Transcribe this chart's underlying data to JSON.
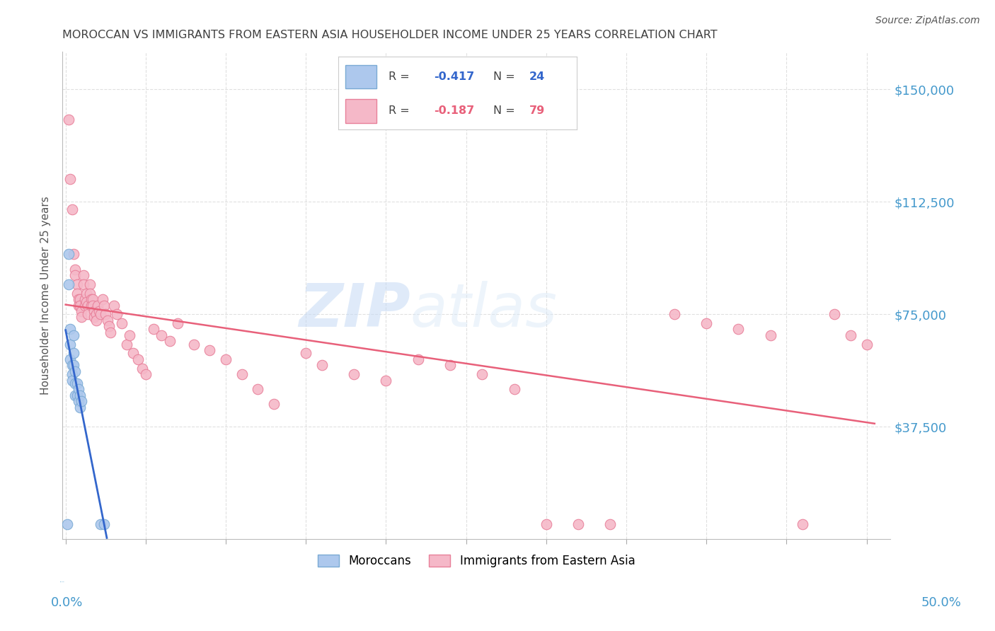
{
  "title": "MOROCCAN VS IMMIGRANTS FROM EASTERN ASIA HOUSEHOLDER INCOME UNDER 25 YEARS CORRELATION CHART",
  "source": "Source: ZipAtlas.com",
  "ylabel": "Householder Income Under 25 years",
  "ytick_labels": [
    "$150,000",
    "$112,500",
    "$75,000",
    "$37,500"
  ],
  "ytick_values": [
    150000,
    112500,
    75000,
    37500
  ],
  "ylim": [
    0,
    162500
  ],
  "xlim": [
    -0.002,
    0.515
  ],
  "watermark_zip": "ZIP",
  "watermark_atlas": "atlas",
  "legend_r1": "R = -0.417",
  "legend_n1": "N = 24",
  "legend_r2": "R = -0.187",
  "legend_n2": "N = 79",
  "moroccan_color": "#adc8ed",
  "moroccan_edge": "#7aaad4",
  "eastern_color": "#f5b8c8",
  "eastern_edge": "#e8809a",
  "moroccan_line_color": "#3366cc",
  "moroccan_line_dash": [
    6,
    4
  ],
  "eastern_line_color": "#e8607a",
  "title_color": "#404040",
  "axis_label_color": "#4499cc",
  "grid_color": "#dddddd",
  "moroccan_x": [
    0.001,
    0.002,
    0.002,
    0.003,
    0.003,
    0.003,
    0.004,
    0.004,
    0.004,
    0.005,
    0.005,
    0.005,
    0.006,
    0.006,
    0.006,
    0.007,
    0.007,
    0.008,
    0.008,
    0.009,
    0.009,
    0.01,
    0.022,
    0.024
  ],
  "moroccan_y": [
    5000,
    95000,
    85000,
    70000,
    65000,
    60000,
    58000,
    55000,
    53000,
    68000,
    62000,
    58000,
    56000,
    52000,
    48000,
    52000,
    48000,
    50000,
    46000,
    48000,
    44000,
    46000,
    5000,
    5000
  ],
  "eastern_x": [
    0.002,
    0.003,
    0.004,
    0.005,
    0.006,
    0.006,
    0.007,
    0.007,
    0.008,
    0.008,
    0.009,
    0.009,
    0.01,
    0.01,
    0.011,
    0.011,
    0.012,
    0.012,
    0.013,
    0.013,
    0.014,
    0.014,
    0.015,
    0.015,
    0.016,
    0.016,
    0.017,
    0.017,
    0.018,
    0.018,
    0.019,
    0.019,
    0.02,
    0.021,
    0.022,
    0.023,
    0.024,
    0.025,
    0.026,
    0.027,
    0.028,
    0.03,
    0.032,
    0.035,
    0.038,
    0.04,
    0.042,
    0.045,
    0.048,
    0.05,
    0.055,
    0.06,
    0.065,
    0.07,
    0.08,
    0.09,
    0.1,
    0.11,
    0.12,
    0.13,
    0.15,
    0.16,
    0.18,
    0.2,
    0.22,
    0.24,
    0.26,
    0.28,
    0.3,
    0.32,
    0.34,
    0.38,
    0.4,
    0.42,
    0.44,
    0.46,
    0.48,
    0.49,
    0.5
  ],
  "eastern_y": [
    140000,
    120000,
    110000,
    95000,
    90000,
    88000,
    85000,
    82000,
    80000,
    78000,
    80000,
    78000,
    76000,
    74000,
    88000,
    85000,
    80000,
    78000,
    82000,
    79000,
    78000,
    75000,
    85000,
    82000,
    80000,
    78000,
    80000,
    78000,
    76000,
    74000,
    75000,
    73000,
    78000,
    76000,
    75000,
    80000,
    78000,
    75000,
    73000,
    71000,
    69000,
    78000,
    75000,
    72000,
    65000,
    68000,
    62000,
    60000,
    57000,
    55000,
    70000,
    68000,
    66000,
    72000,
    65000,
    63000,
    60000,
    55000,
    50000,
    45000,
    62000,
    58000,
    55000,
    53000,
    60000,
    58000,
    55000,
    50000,
    5000,
    5000,
    5000,
    75000,
    72000,
    70000,
    68000,
    5000,
    75000,
    68000,
    65000
  ]
}
